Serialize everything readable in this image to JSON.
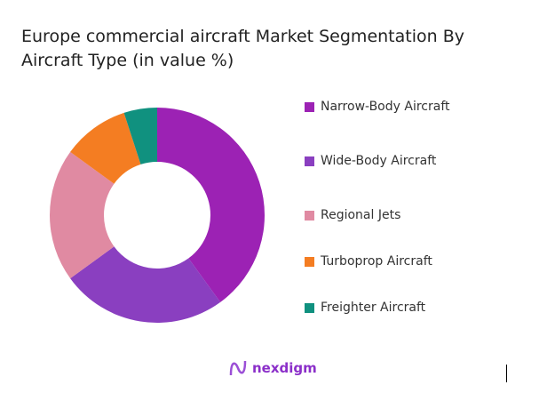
{
  "chart_data": {
    "type": "pie",
    "variant": "donut",
    "title": "Europe commercial aircraft Market Segmentation By Aircraft Type (in value %)",
    "categories": [
      "Narrow-Body Aircraft",
      "Wide-Body Aircraft",
      "Regional Jets",
      "Turboprop Aircraft",
      "Freighter Aircraft"
    ],
    "values": [
      40,
      25,
      20,
      10,
      5
    ],
    "colors": [
      "#9c22b4",
      "#8a3fc0",
      "#e08aa2",
      "#f47d22",
      "#10917f"
    ],
    "legend_position": "right"
  },
  "logo": {
    "text": "nexdigm"
  }
}
